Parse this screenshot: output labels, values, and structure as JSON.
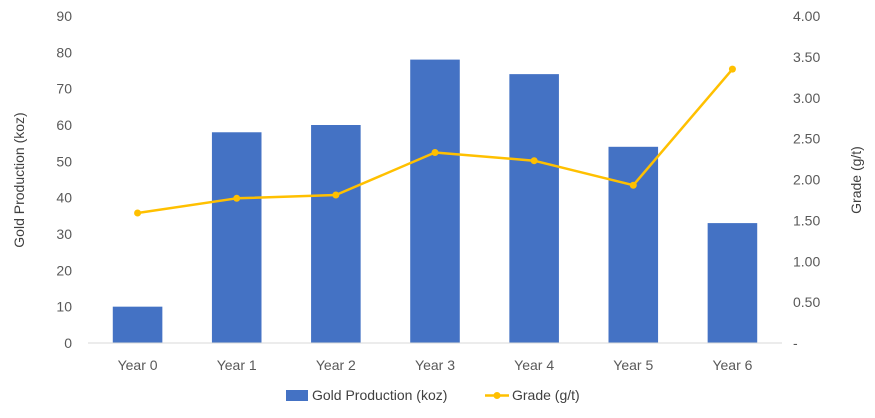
{
  "chart_data": {
    "type": "bar",
    "categories": [
      "Year 0",
      "Year 1",
      "Year 2",
      "Year 3",
      "Year 4",
      "Year 5",
      "Year 6"
    ],
    "series": [
      {
        "name": "Gold Production (koz)",
        "type": "bar",
        "axis": "left",
        "values": [
          10,
          58,
          60,
          78,
          74,
          54,
          33
        ],
        "color": "#4472C4"
      },
      {
        "name": "Grade (g/t)",
        "type": "line",
        "axis": "right",
        "values": [
          1.59,
          1.77,
          1.81,
          2.33,
          2.23,
          1.93,
          3.35
        ],
        "color": "#FFC000"
      }
    ],
    "ylabel": "Gold Production (koz)",
    "y2label": "Grade (g/t)",
    "ylim": [
      0,
      90
    ],
    "y2lim": [
      0,
      4
    ],
    "yticks": [
      "0",
      "10",
      "20",
      "30",
      "40",
      "50",
      "60",
      "70",
      "80",
      "90"
    ],
    "y2ticks": [
      "-",
      "0.50",
      "1.00",
      "1.50",
      "2.00",
      "2.50",
      "3.00",
      "3.50",
      "4.00"
    ],
    "grid": false,
    "legend": "bottom-center"
  }
}
